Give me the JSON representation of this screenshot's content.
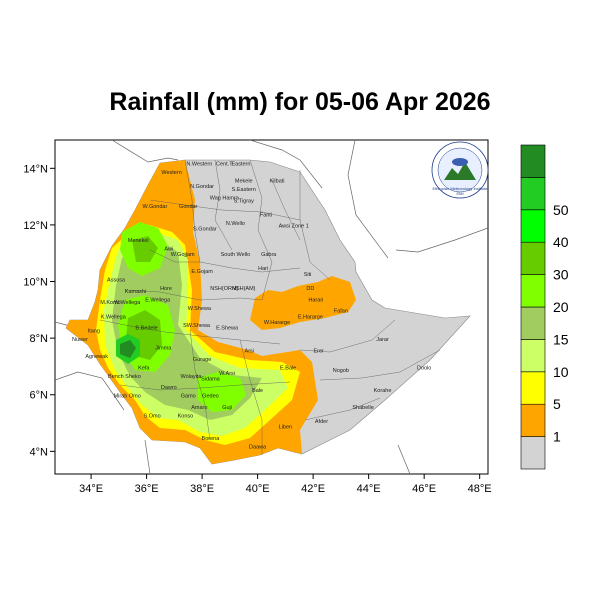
{
  "title": "Rainfall (mm) for 05-06 Apr 2026",
  "x_ticks": [
    "34°E",
    "36°E",
    "38°E",
    "40°E",
    "42°E",
    "44°E",
    "46°E",
    "48°E"
  ],
  "y_ticks": [
    "14°N",
    "12°N",
    "10°N",
    "8°N",
    "6°N",
    "4°N"
  ],
  "colorbar": {
    "labels": [
      "1",
      "5",
      "10",
      "15",
      "20",
      "30",
      "40",
      "50"
    ],
    "colors": [
      "#d3d3d3",
      "#ffa500",
      "#ffff00",
      "#ccff66",
      "#a0cc60",
      "#80ff00",
      "#66cc00",
      "#00ff00",
      "#22cc22",
      "#228b22"
    ]
  },
  "logo": {
    "line1": "Ethiopian Meteorology Institute",
    "line2": "EMI"
  },
  "regions": [
    {
      "name": "N.Western",
      "lon": 37.9,
      "lat": 14.1
    },
    {
      "name": "Cent.T",
      "lon": 38.8,
      "lat": 14.1
    },
    {
      "name": "Eastern",
      "lon": 39.4,
      "lat": 14.1
    },
    {
      "name": "Western",
      "lon": 36.9,
      "lat": 13.8
    },
    {
      "name": "Mekele",
      "lon": 39.5,
      "lat": 13.5
    },
    {
      "name": "S.Eastern",
      "lon": 39.5,
      "lat": 13.2
    },
    {
      "name": "Kilbati",
      "lon": 40.7,
      "lat": 13.5
    },
    {
      "name": "N.Gondar",
      "lon": 38.0,
      "lat": 13.3
    },
    {
      "name": "Wag Hamra",
      "lon": 38.8,
      "lat": 12.9
    },
    {
      "name": "S.Tigray",
      "lon": 39.5,
      "lat": 12.8
    },
    {
      "name": "W.Gondar",
      "lon": 36.3,
      "lat": 12.6
    },
    {
      "name": "Gondar",
      "lon": 37.5,
      "lat": 12.6
    },
    {
      "name": "Fanti",
      "lon": 40.3,
      "lat": 12.3
    },
    {
      "name": "N.Wello",
      "lon": 39.2,
      "lat": 12.0
    },
    {
      "name": "Awsi Zone 1",
      "lon": 41.3,
      "lat": 11.9
    },
    {
      "name": "S.Gondar",
      "lon": 38.1,
      "lat": 11.8
    },
    {
      "name": "Menekel",
      "lon": 35.7,
      "lat": 11.4
    },
    {
      "name": "Awi",
      "lon": 36.8,
      "lat": 11.1
    },
    {
      "name": "W.Gojjam",
      "lon": 37.3,
      "lat": 10.9
    },
    {
      "name": "South Wello",
      "lon": 39.2,
      "lat": 10.9
    },
    {
      "name": "Gabra",
      "lon": 40.4,
      "lat": 10.9
    },
    {
      "name": "E.Gojam",
      "lon": 38.0,
      "lat": 10.3
    },
    {
      "name": "Hari",
      "lon": 40.2,
      "lat": 10.4
    },
    {
      "name": "Assosa",
      "lon": 34.9,
      "lat": 10.0
    },
    {
      "name": "Kamashi",
      "lon": 35.6,
      "lat": 9.6
    },
    {
      "name": "Hore",
      "lon": 36.7,
      "lat": 9.7
    },
    {
      "name": "NSH(ORM)",
      "lon": 38.8,
      "lat": 9.7
    },
    {
      "name": "NSH(AM)",
      "lon": 39.5,
      "lat": 9.7
    },
    {
      "name": "Siti",
      "lon": 41.8,
      "lat": 10.2
    },
    {
      "name": "DD",
      "lon": 41.9,
      "lat": 9.7
    },
    {
      "name": "Harari",
      "lon": 42.1,
      "lat": 9.3
    },
    {
      "name": "M.Komo",
      "lon": 34.7,
      "lat": 9.2
    },
    {
      "name": "W.Wellega",
      "lon": 35.3,
      "lat": 9.2
    },
    {
      "name": "E.Wellega",
      "lon": 36.4,
      "lat": 9.3
    },
    {
      "name": "W.Shewa",
      "lon": 37.9,
      "lat": 9.0
    },
    {
      "name": "Fafan",
      "lon": 43.0,
      "lat": 8.9
    },
    {
      "name": "K.Wellega",
      "lon": 34.8,
      "lat": 8.7
    },
    {
      "name": "E.Hararge",
      "lon": 41.9,
      "lat": 8.7
    },
    {
      "name": "W.Hararge",
      "lon": 40.7,
      "lat": 8.5
    },
    {
      "name": "B.Bedele",
      "lon": 36.0,
      "lat": 8.3
    },
    {
      "name": "SW.Shewa",
      "lon": 37.8,
      "lat": 8.4
    },
    {
      "name": "E.Shewa",
      "lon": 38.9,
      "lat": 8.3
    },
    {
      "name": "Itang",
      "lon": 34.1,
      "lat": 8.2
    },
    {
      "name": "Nuwer",
      "lon": 33.6,
      "lat": 7.9
    },
    {
      "name": "Jarar",
      "lon": 44.5,
      "lat": 7.9
    },
    {
      "name": "Jimma",
      "lon": 36.6,
      "lat": 7.6
    },
    {
      "name": "Arsi",
      "lon": 39.7,
      "lat": 7.5
    },
    {
      "name": "Erer",
      "lon": 42.2,
      "lat": 7.5
    },
    {
      "name": "Agnewak",
      "lon": 34.2,
      "lat": 7.3
    },
    {
      "name": "Gurage",
      "lon": 38.0,
      "lat": 7.2
    },
    {
      "name": "Kefa",
      "lon": 35.9,
      "lat": 6.9
    },
    {
      "name": "E.Bale",
      "lon": 41.1,
      "lat": 6.9
    },
    {
      "name": "Nogob",
      "lon": 43.0,
      "lat": 6.8
    },
    {
      "name": "Doolo",
      "lon": 46.0,
      "lat": 6.9
    },
    {
      "name": "Bench Sheko",
      "lon": 35.2,
      "lat": 6.6
    },
    {
      "name": "Wolayita",
      "lon": 37.6,
      "lat": 6.6
    },
    {
      "name": "W.Arsi",
      "lon": 38.9,
      "lat": 6.7
    },
    {
      "name": "Sidama",
      "lon": 38.3,
      "lat": 6.5
    },
    {
      "name": "Bale",
      "lon": 40.0,
      "lat": 6.1
    },
    {
      "name": "Korahe",
      "lon": 44.5,
      "lat": 6.1
    },
    {
      "name": "Dawro",
      "lon": 36.8,
      "lat": 6.2
    },
    {
      "name": "Gamo",
      "lon": 37.5,
      "lat": 5.9
    },
    {
      "name": "Gedeo",
      "lon": 38.3,
      "lat": 5.9
    },
    {
      "name": "Mirab Omo",
      "lon": 35.3,
      "lat": 5.9
    },
    {
      "name": "Amaro",
      "lon": 37.9,
      "lat": 5.5
    },
    {
      "name": "Guji",
      "lon": 38.9,
      "lat": 5.5
    },
    {
      "name": "Shabelle",
      "lon": 43.8,
      "lat": 5.5
    },
    {
      "name": "S.Omo",
      "lon": 36.2,
      "lat": 5.2
    },
    {
      "name": "Konso",
      "lon": 37.4,
      "lat": 5.2
    },
    {
      "name": "Afder",
      "lon": 42.3,
      "lat": 5.0
    },
    {
      "name": "Liben",
      "lon": 41.0,
      "lat": 4.8
    },
    {
      "name": "Borena",
      "lon": 38.3,
      "lat": 4.4
    },
    {
      "name": "Daawa",
      "lon": 40.0,
      "lat": 4.1
    }
  ]
}
